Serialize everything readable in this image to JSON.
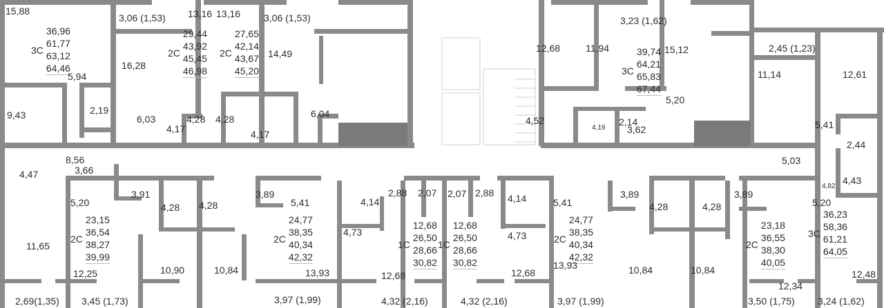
{
  "colors": {
    "wall": "#8a8a8a",
    "core": "#7a7a7a",
    "text": "#2b2b2b",
    "fixture": "#d0d0d0"
  },
  "apartments": [
    {
      "type": "3С",
      "areas": [
        "36,96",
        "61,77",
        "63,12",
        "64,46"
      ]
    },
    {
      "type": "2С",
      "areas": [
        "29,44",
        "43,92",
        "45,45",
        "46,98"
      ]
    },
    {
      "type": "2С",
      "areas": [
        "27,65",
        "42,14",
        "43,67",
        "45,20"
      ]
    },
    {
      "type": "3С",
      "areas": [
        "39,74",
        "64,21",
        "65,83",
        "67,44"
      ]
    },
    {
      "type": "2С",
      "areas": [
        "23,15",
        "36,54",
        "38,27",
        "39,99"
      ]
    },
    {
      "type": "2С",
      "areas": [
        "24,77",
        "38,35",
        "40,34",
        "42,32"
      ]
    },
    {
      "type": "1С",
      "areas": [
        "12,68",
        "26,50",
        "28,66",
        "30,82"
      ]
    },
    {
      "type": "1С",
      "areas": [
        "12,68",
        "26,50",
        "28,66",
        "30,82"
      ]
    },
    {
      "type": "2С",
      "areas": [
        "24,77",
        "38,35",
        "40,34",
        "42,32"
      ]
    },
    {
      "type": "2С",
      "areas": [
        "23,18",
        "36,55",
        "38,30",
        "40,05"
      ]
    },
    {
      "type": "3С",
      "areas": [
        "36,23",
        "58,36",
        "61,21",
        "64,05"
      ]
    }
  ],
  "rooms": [
    "15,88",
    "5,94",
    "9,43",
    "2,19",
    "16,28",
    "3,06 (1,53)",
    "6,03",
    "13,16",
    "13,16",
    "4,17",
    "4,28",
    "4,28",
    "3,06 (1,53)",
    "14,49",
    "6,04",
    "4,17",
    "12,68",
    "11,94",
    "3,23 (1,62)",
    "15,12",
    "4,52",
    "4,19",
    "2,14",
    "3,62",
    "5,20",
    "2,45 (1,23)",
    "11,14",
    "12,61",
    "5,41",
    "2,44",
    "4,47",
    "8,56",
    "3,66",
    "5,20",
    "3,91",
    "4,28",
    "4,28",
    "3,89",
    "5,41",
    "4,14",
    "2,88",
    "2,07",
    "2,07",
    "2,88",
    "4,14",
    "5,41",
    "3,89",
    "4,28",
    "4,28",
    "3,89",
    "5,03",
    "4,43",
    "4,82",
    "5,20",
    "12,34",
    "12,48",
    "3,50 (1,75)",
    "3,24 (1,62)",
    "11,65",
    "12,25",
    "2,69(1,35)",
    "3,45 (1,73)",
    "10,90",
    "10,84",
    "13,93",
    "3,97 (1,99)",
    "4,73",
    "12,68",
    "4,32 (2,16)",
    "4,32 (2,16)",
    "4,73",
    "12,68",
    "13,93",
    "3,97 (1,99)",
    "10,84",
    "10,84"
  ]
}
